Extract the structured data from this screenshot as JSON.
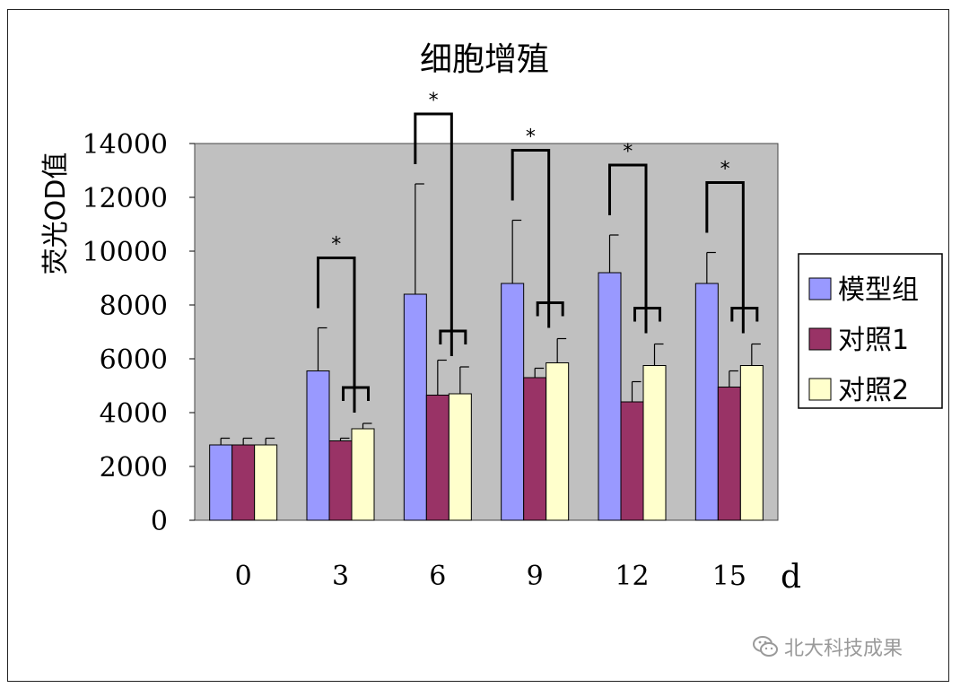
{
  "chart_data": {
    "type": "bar",
    "title": "细胞增殖",
    "ylabel": "荧光OD值",
    "xlabel": "d",
    "categories": [
      "0",
      "3",
      "6",
      "9",
      "12",
      "15"
    ],
    "ylim": [
      0,
      14000
    ],
    "yticks": [
      "0",
      "2000",
      "4000",
      "6000",
      "8000",
      "10000",
      "12000",
      "14000"
    ],
    "grid": false,
    "legend_position": "right",
    "series": [
      {
        "name": "模型组",
        "color": "#9999ff",
        "values": [
          2800,
          5550,
          8400,
          8800,
          9200,
          8800
        ],
        "errors": [
          250,
          1600,
          4100,
          2350,
          1400,
          1150
        ]
      },
      {
        "name": "对照1",
        "color": "#993366",
        "values": [
          2800,
          2950,
          4650,
          5300,
          4400,
          4950
        ],
        "errors": [
          250,
          100,
          1300,
          350,
          750,
          600
        ]
      },
      {
        "name": "对照2",
        "color": "#ffffcc",
        "values": [
          2800,
          3400,
          4700,
          5850,
          5750,
          5750
        ],
        "errors": [
          250,
          200,
          1000,
          900,
          800,
          800
        ]
      }
    ],
    "annotations": [
      {
        "category": "3",
        "text": "*"
      },
      {
        "category": "6",
        "text": "*"
      },
      {
        "category": "9",
        "text": "*"
      },
      {
        "category": "12",
        "text": "*"
      },
      {
        "category": "15",
        "text": "*"
      }
    ]
  },
  "watermark": {
    "text": "北大科技成果",
    "icon": "wechat-icon"
  }
}
